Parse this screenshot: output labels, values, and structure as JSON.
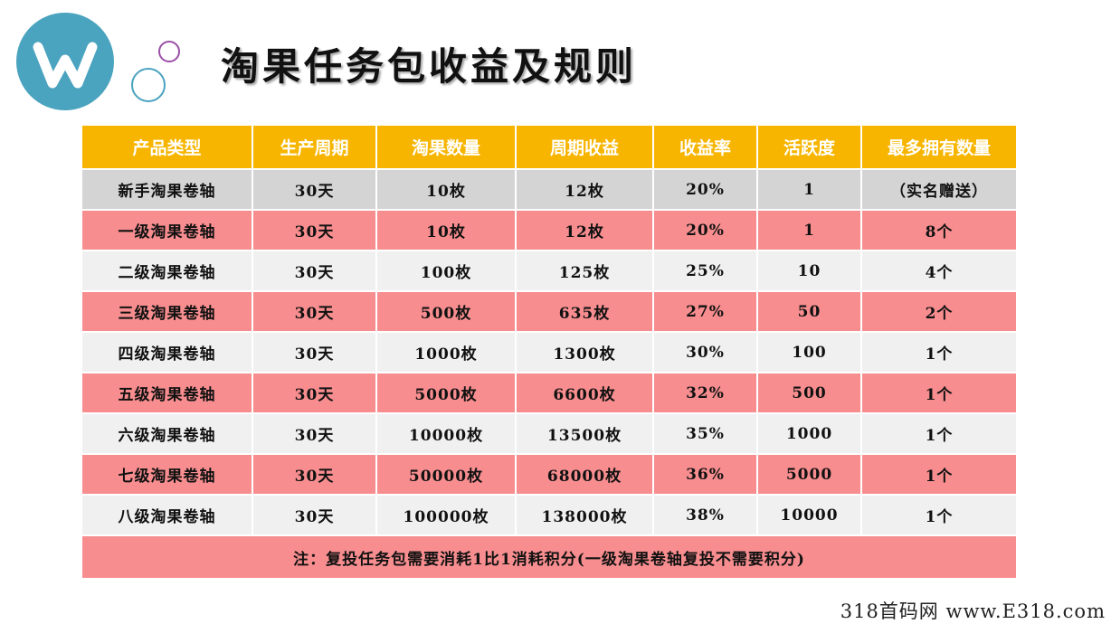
{
  "title": "淘果任务包收益及规则",
  "logo": {
    "letter": "W",
    "color": "#4aa3bf"
  },
  "table": {
    "headers": [
      "产品类型",
      "生产周期",
      "淘果数量",
      "周期收益",
      "收益率",
      "活跃度",
      "最多拥有数量"
    ],
    "rows": [
      [
        "新手淘果卷轴",
        "30天",
        "10枚",
        "12枚",
        "20%",
        "1",
        "（实名赠送）"
      ],
      [
        "一级淘果卷轴",
        "30天",
        "10枚",
        "12枚",
        "20%",
        "1",
        "8个"
      ],
      [
        "二级淘果卷轴",
        "30天",
        "100枚",
        "125枚",
        "25%",
        "10",
        "4个"
      ],
      [
        "三级淘果卷轴",
        "30天",
        "500枚",
        "635枚",
        "27%",
        "50",
        "2个"
      ],
      [
        "四级淘果卷轴",
        "30天",
        "1000枚",
        "1300枚",
        "30%",
        "100",
        "1个"
      ],
      [
        "五级淘果卷轴",
        "30天",
        "5000枚",
        "6600枚",
        "32%",
        "500",
        "1个"
      ],
      [
        "六级淘果卷轴",
        "30天",
        "10000枚",
        "13500枚",
        "35%",
        "1000",
        "1个"
      ],
      [
        "七级淘果卷轴",
        "30天",
        "50000枚",
        "68000枚",
        "36%",
        "5000",
        "1个"
      ],
      [
        "八级淘果卷轴",
        "30天",
        "100000枚",
        "138000枚",
        "38%",
        "10000",
        "1个"
      ]
    ],
    "note": "注：复投任务包需要消耗1比1消耗积分(一级淘果卷轴复投不需要积分)"
  },
  "watermark": "318首码网 www.E318.com",
  "colors": {
    "header": "#f7b500",
    "pink_row": "#f78d8f",
    "grey_row": "#d4d4d4",
    "light_row": "#f0f0f0"
  }
}
